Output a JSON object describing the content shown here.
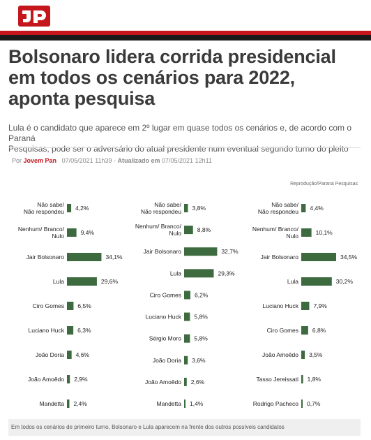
{
  "article": {
    "title_line1": "Bolsonaro lidera corrida presidencial",
    "title_line2": "em todos os cenários para 2022,",
    "title_line3": "aponta pesquisa",
    "subtitle_line1": "Lula é o candidato que aparece em 2º lugar em quase todos os cenários e, de acordo com o Paraná",
    "subtitle_line2": "Pesquisas, pode ser o adversário do atual presidente num eventual segundo turno do pleito",
    "byline_prefix": "Por",
    "author": "Jovem Pan",
    "published": "07/05/2021 11h39",
    "separator": " - ",
    "updated_label": "Atualizado em",
    "updated": "07/05/2021 12h11"
  },
  "figure": {
    "credit": "Reprodução/Paraná Pesquisas",
    "caption": "Em todos os cenários de primeiro turno, Bolsonaro e Lula aparecem na frente dos outros possíveis candidatos",
    "bar_color": "#3d6b3f"
  },
  "chart_data": [
    {
      "type": "bar",
      "orientation": "horizontal",
      "categories": [
        "Não sabe/\nNão respondeu",
        "Nenhum/ Branco/\nNulo",
        "Jair Bolsonaro",
        "Lula",
        "Ciro Gomes",
        "Luciano Huck",
        "João Doria",
        "João Amoêdo",
        "Mandetta"
      ],
      "values": [
        4.2,
        9.4,
        34.1,
        29.6,
        6.5,
        6.3,
        4.6,
        2.9,
        2.4
      ],
      "labels": [
        "4,2%",
        "9,4%",
        "34,1%",
        "29,6%",
        "6,5%",
        "6,3%",
        "4,6%",
        "2,9%",
        "2,4%"
      ]
    },
    {
      "type": "bar",
      "orientation": "horizontal",
      "categories": [
        "Não sabe/\nNão respondeu",
        "Nenhum/ Branco/\nNulo",
        "Jair Bolsonaro",
        "Lula",
        "Ciro Gomes",
        "Luciano Huck",
        "Sérgio Moro",
        "João Doria",
        "João Amoêdo",
        "Mandetta"
      ],
      "values": [
        3.8,
        8.8,
        32.7,
        29.3,
        6.2,
        5.8,
        5.8,
        3.6,
        2.6,
        1.4
      ],
      "labels": [
        "3,8%",
        "8,8%",
        "32,7%",
        "29,3%",
        "6,2%",
        "5,8%",
        "5,8%",
        "3,6%",
        "2,6%",
        "1,4%"
      ]
    },
    {
      "type": "bar",
      "orientation": "horizontal",
      "categories": [
        "Não sabe/\nNão respondeu",
        "Nenhum/ Branco/\nNulo",
        "Jair Bolsonaro",
        "Lula",
        "Luciano Huck",
        "Ciro Gomes",
        "João Amoêdo",
        "Tasso Jereissati",
        "Rodrigo Pacheco"
      ],
      "values": [
        4.4,
        10.1,
        34.5,
        30.2,
        7.9,
        6.8,
        3.5,
        1.8,
        0.7
      ],
      "labels": [
        "4,4%",
        "10,1%",
        "34,5%",
        "30,2%",
        "7,9%",
        "6,8%",
        "3,5%",
        "1,8%",
        "0,7%"
      ]
    }
  ]
}
